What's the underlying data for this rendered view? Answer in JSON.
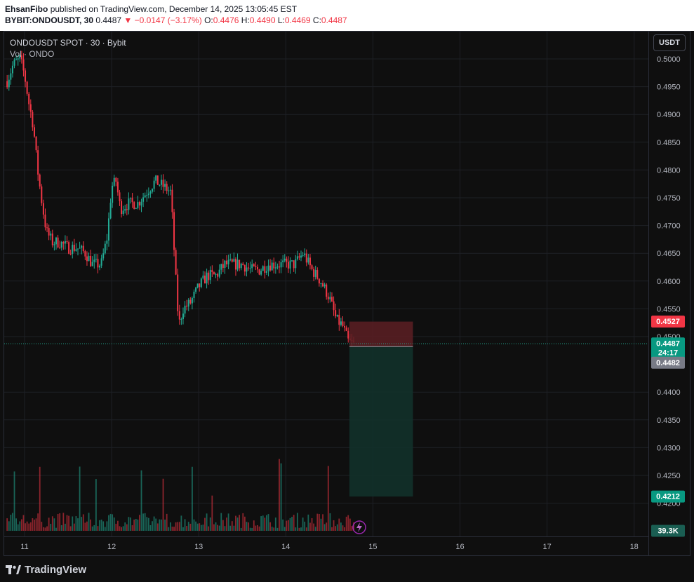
{
  "header": {
    "author": "EhsanFibo",
    "published_text": "published on TradingView.com, December 14, 2025 13:05:45 EST",
    "symbol": "BYBIT:ONDOUSDT, 30",
    "last": "0.4487",
    "change_arrow": "▼",
    "change": "−0.0147 (−3.17%)",
    "o_label": "O:",
    "o_value": "0.4476",
    "h_label": "H:",
    "h_value": "0.4490",
    "l_label": "L:",
    "l_value": "0.4469",
    "c_label": "C:",
    "c_value": "0.4487"
  },
  "legend": {
    "title": "ONDOUSDT SPOT · 30 · Bybit",
    "volume": "Vol · ONDO"
  },
  "currency_button": "USDT",
  "brand": "TradingView",
  "colors": {
    "up": "#22ab94",
    "down": "#f23645",
    "stop_zone": "#5c1e23",
    "target_zone": "#12332c",
    "grid": "#1e2026"
  },
  "chart_data": {
    "type": "candlestick",
    "timeframe": "30",
    "x_ticks": [
      "11",
      "12",
      "13",
      "14",
      "15",
      "16",
      "17",
      "18"
    ],
    "y_ticks": [
      "0.5000",
      "0.4950",
      "0.4900",
      "0.4850",
      "0.4800",
      "0.4750",
      "0.4700",
      "0.4650",
      "0.4600",
      "0.4550",
      "0.4500",
      "0.4400",
      "0.4350",
      "0.4300",
      "0.4250",
      "0.4200"
    ],
    "ylim": [
      0.4172,
      0.503
    ],
    "price_path": [
      [
        10.8,
        0.496
      ],
      [
        10.87,
        0.499
      ],
      [
        10.95,
        0.5
      ],
      [
        11.0,
        0.497
      ],
      [
        11.05,
        0.492
      ],
      [
        11.1,
        0.488
      ],
      [
        11.15,
        0.48
      ],
      [
        11.2,
        0.474
      ],
      [
        11.25,
        0.469
      ],
      [
        11.32,
        0.467
      ],
      [
        11.4,
        0.467
      ],
      [
        11.5,
        0.466
      ],
      [
        11.6,
        0.466
      ],
      [
        11.7,
        0.465
      ],
      [
        11.78,
        0.463
      ],
      [
        11.88,
        0.463
      ],
      [
        11.95,
        0.468
      ],
      [
        12.0,
        0.477
      ],
      [
        12.05,
        0.478
      ],
      [
        12.1,
        0.473
      ],
      [
        12.2,
        0.474
      ],
      [
        12.3,
        0.474
      ],
      [
        12.4,
        0.476
      ],
      [
        12.5,
        0.478
      ],
      [
        12.6,
        0.477
      ],
      [
        12.68,
        0.476
      ],
      [
        12.73,
        0.462
      ],
      [
        12.77,
        0.452
      ],
      [
        12.82,
        0.455
      ],
      [
        12.9,
        0.456
      ],
      [
        13.0,
        0.459
      ],
      [
        13.1,
        0.461
      ],
      [
        13.2,
        0.461
      ],
      [
        13.3,
        0.463
      ],
      [
        13.4,
        0.463
      ],
      [
        13.5,
        0.463
      ],
      [
        13.6,
        0.462
      ],
      [
        13.7,
        0.462
      ],
      [
        13.8,
        0.463
      ],
      [
        13.9,
        0.463
      ],
      [
        14.0,
        0.463
      ],
      [
        14.1,
        0.463
      ],
      [
        14.2,
        0.465
      ],
      [
        14.3,
        0.462
      ],
      [
        14.4,
        0.46
      ],
      [
        14.5,
        0.457
      ],
      [
        14.58,
        0.453
      ],
      [
        14.65,
        0.452
      ],
      [
        14.72,
        0.449
      ],
      [
        14.78,
        0.4487
      ]
    ],
    "last_price": "0.4487",
    "countdown": "24:17",
    "bid_price": "0.4482",
    "volume_label": "39.3K",
    "position": {
      "type": "short",
      "entry": 0.4482,
      "stop": 0.4527,
      "target": 0.4212,
      "stop_label": "0.4527",
      "target_label": "0.4212",
      "x_start": 14.73,
      "x_end": 15.46
    }
  }
}
